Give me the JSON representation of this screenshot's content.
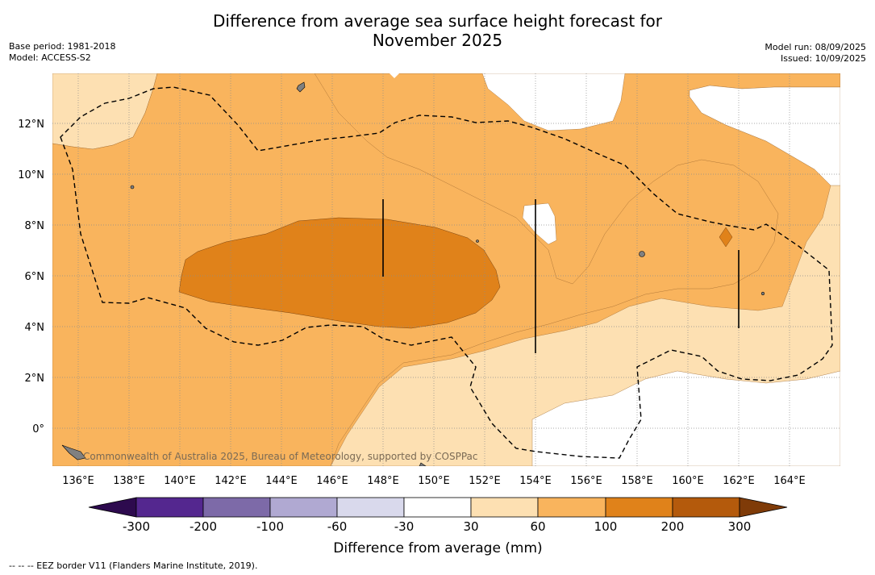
{
  "header": {
    "title_line1": "Difference from average sea surface height forecast for",
    "title_line2": "November 2025",
    "base_period": "Base period: 1981-2018",
    "model": "Model: ACCESS-S2",
    "model_run": "Model run: 08/09/2025",
    "issued": "Issued: 10/09/2025"
  },
  "map": {
    "copyright": "Commonwealth of Australia 2025, Bureau of Meteorology, supported by COSPPac",
    "land_color": "#808080",
    "eez_border_style": "dashed"
  },
  "chart_data": {
    "type": "heatmap",
    "title": "Difference from average sea surface height forecast for November 2025",
    "x_axis": {
      "min": 135,
      "max": 166,
      "ticks": [
        "136°E",
        "138°E",
        "140°E",
        "142°E",
        "144°E",
        "146°E",
        "148°E",
        "150°E",
        "152°E",
        "154°E",
        "156°E",
        "158°E",
        "160°E",
        "162°E",
        "164°E"
      ],
      "tick_values": [
        136,
        138,
        140,
        142,
        144,
        146,
        148,
        150,
        152,
        154,
        156,
        158,
        160,
        162,
        164
      ]
    },
    "y_axis": {
      "min": -1.5,
      "max": 14,
      "ticks": [
        "0°",
        "2°N",
        "4°N",
        "6°N",
        "8°N",
        "10°N",
        "12°N"
      ],
      "tick_values": [
        0,
        2,
        4,
        6,
        8,
        10,
        12
      ]
    },
    "grid": true,
    "colorbar": {
      "label": "Difference from average (mm)",
      "ticks": [
        "-300",
        "-200",
        "-100",
        "-60",
        "-30",
        "30",
        "60",
        "100",
        "200",
        "300"
      ],
      "colors": [
        "#2d0a4e",
        "#54278f",
        "#7d6aa8",
        "#b0a9d2",
        "#d9d9ec",
        "#ffffff",
        "#fde0b2",
        "#f9b45d",
        "#e0821a",
        "#b45a0c",
        "#7f3b08"
      ]
    },
    "levels": [
      {
        "range": "-30 to 30",
        "color": "#ffffff",
        "description": "near-average areas"
      },
      {
        "range": "30 to 60",
        "color": "#fde0b2"
      },
      {
        "range": "60 to 100",
        "color": "#f9b45d"
      },
      {
        "range": "100 to 200",
        "color": "#e0821a"
      }
    ],
    "vectors": [
      {
        "lon": 148.0,
        "lat_from": 6.0,
        "lat_to": 9.0
      },
      {
        "lon": 154.0,
        "lat_from": 3.0,
        "lat_to": 9.0
      },
      {
        "lon": 162.0,
        "lat_from": 4.0,
        "lat_to": 7.0
      }
    ]
  },
  "footer": {
    "legend_text": "--  --  -- EEZ border V11 (Flanders Marine Institute, 2019)."
  }
}
